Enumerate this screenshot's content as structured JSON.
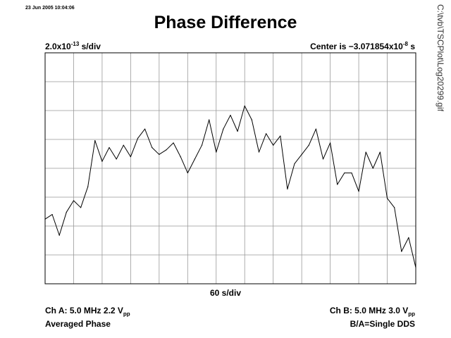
{
  "header": {
    "timestamp": "23 Jun 2005 10:04:06",
    "title": "Phase Difference",
    "file_path": "C:\\tvb\\TSCPlot\\Log20299.gif"
  },
  "scale": {
    "y_mantissa": "2.0x10",
    "y_exponent": "-13",
    "y_unit": " s/div",
    "center_prefix": "Center is −3.071854x10",
    "center_exponent": "-8",
    "center_unit": " s",
    "x_label": "60 s/div"
  },
  "channels": {
    "a_line1_prefix": "Ch A: 5.0 MHz 2.2 V",
    "a_line1_sub": "pp",
    "a_line2": "Averaged Phase",
    "b_line1_prefix": "Ch B: 5.0 MHz 3.0 V",
    "b_line1_sub": "pp",
    "b_line2": "B/A=Single DDS"
  },
  "colors": {
    "grid": "#999999",
    "frame": "#000000",
    "trace": "#000000"
  },
  "chart_data": {
    "type": "line",
    "title": "Phase Difference",
    "xlabel": "60 s/div",
    "ylabel": "2.0x10-13 s/div",
    "xlim": [
      0,
      780
    ],
    "ylim": [
      -8,
      2
    ],
    "x_divisions": 13,
    "y_divisions": 8,
    "grid": true,
    "series": [
      {
        "x": [
          0,
          15,
          30,
          45,
          60,
          75,
          90,
          105,
          120,
          135,
          150,
          165,
          180,
          195,
          210,
          225,
          240,
          255,
          270,
          285,
          300,
          315,
          330,
          345,
          360,
          375,
          390,
          405,
          420,
          435,
          450,
          465,
          480,
          495,
          510,
          525,
          540,
          555,
          570,
          585,
          600,
          615,
          630,
          645,
          660,
          675,
          690,
          705,
          720,
          735,
          750,
          765,
          780
        ],
        "values": [
          -5.2,
          -5.0,
          -5.9,
          -4.9,
          -4.4,
          -4.7,
          -3.8,
          -1.8,
          -2.7,
          -2.1,
          -2.6,
          -2.0,
          -2.5,
          -1.7,
          -1.3,
          -2.1,
          -2.4,
          -2.2,
          -1.9,
          -2.5,
          -3.2,
          -2.6,
          -2.0,
          -0.9,
          -2.3,
          -1.3,
          -0.7,
          -1.4,
          -0.3,
          -0.9,
          -2.3,
          -1.5,
          -2.0,
          -1.6,
          -3.9,
          -2.8,
          -2.4,
          -2.0,
          -1.3,
          -2.6,
          -1.9,
          -3.7,
          -3.2,
          -3.2,
          -4.0,
          -2.3,
          -3.0,
          -2.3,
          -4.3,
          -4.7,
          -6.6,
          -6.0,
          -7.3
        ],
        "note": ""
      }
    ]
  }
}
